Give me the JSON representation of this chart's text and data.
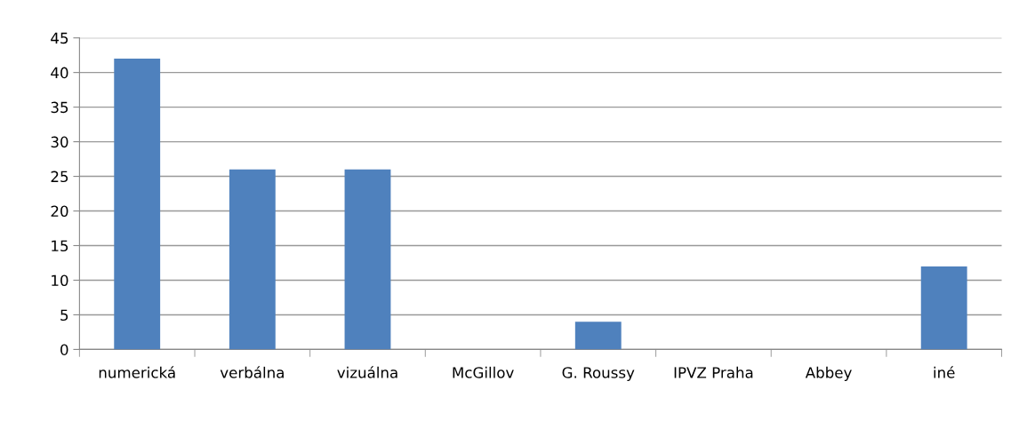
{
  "chart_data": {
    "type": "bar",
    "categories": [
      "numerická",
      "verbálna",
      "vizuálna",
      "McGillov",
      "G. Roussy",
      "IPVZ Praha",
      "Abbey",
      "iné"
    ],
    "values": [
      42,
      26,
      26,
      0,
      4,
      0,
      0,
      12
    ],
    "color": "#4f81bd",
    "ylim": [
      0,
      45
    ],
    "yticks": [
      0,
      5,
      10,
      15,
      20,
      25,
      30,
      35,
      40,
      45
    ],
    "grid": "y",
    "legend": false
  }
}
